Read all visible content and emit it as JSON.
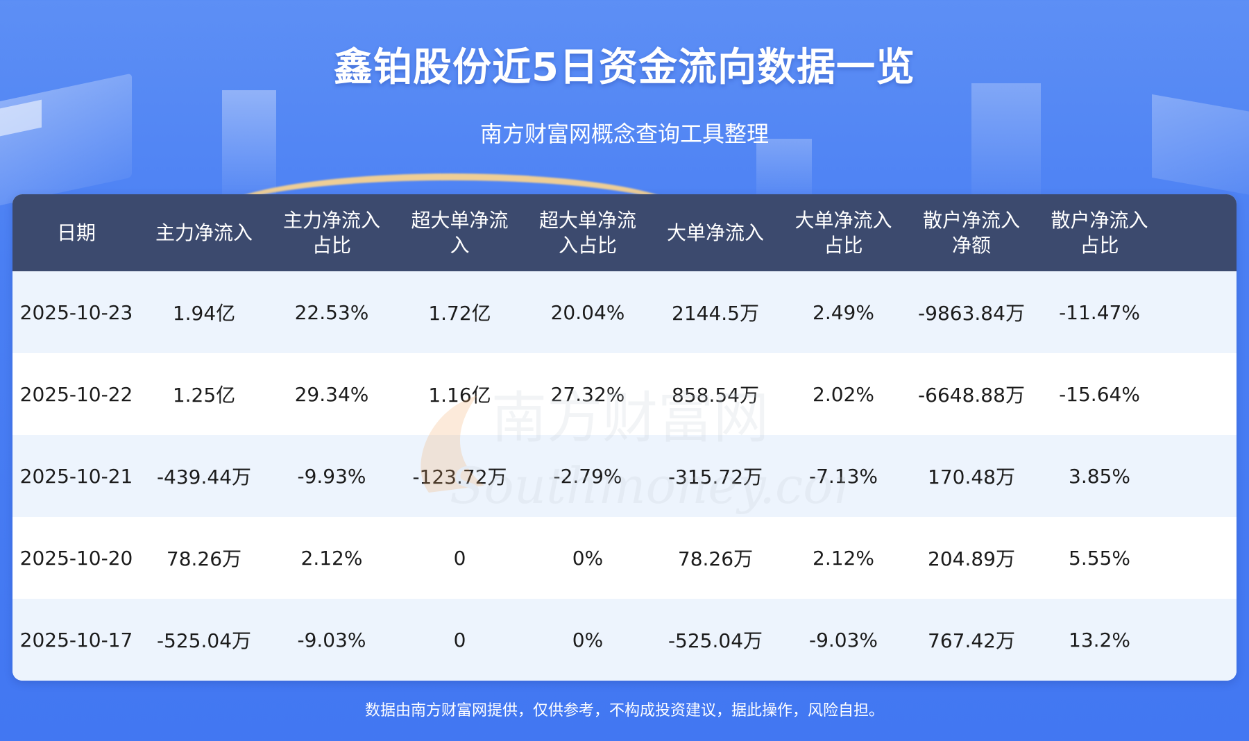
{
  "header": {
    "title": "鑫铂股份近5日资金流向数据一览",
    "subtitle": "南方财富网概念查询工具整理"
  },
  "table": {
    "columns": [
      "日期",
      "主力净流入",
      "主力净流入\n占比",
      "超大单净流\n入",
      "超大单净流\n入占比",
      "大单净流入",
      "大单净流入\n占比",
      "散户净流入\n净额",
      "散户净流入\n占比"
    ],
    "rows": [
      [
        "2025-10-23",
        "1.94亿",
        "22.53%",
        "1.72亿",
        "20.04%",
        "2144.5万",
        "2.49%",
        "-9863.84万",
        "-11.47%"
      ],
      [
        "2025-10-22",
        "1.25亿",
        "29.34%",
        "1.16亿",
        "27.32%",
        "858.54万",
        "2.02%",
        "-6648.88万",
        "-15.64%"
      ],
      [
        "2025-10-21",
        "-439.44万",
        "-9.93%",
        "-123.72万",
        "-2.79%",
        "-315.72万",
        "-7.13%",
        "170.48万",
        "3.85%"
      ],
      [
        "2025-10-20",
        "78.26万",
        "2.12%",
        "0",
        "0%",
        "78.26万",
        "2.12%",
        "204.89万",
        "5.55%"
      ],
      [
        "2025-10-17",
        "-525.04万",
        "-9.03%",
        "0",
        "0%",
        "-525.04万",
        "-9.03%",
        "767.42万",
        "13.2%"
      ]
    ]
  },
  "watermark": {
    "text_cn": "南方财富网",
    "text_en": "Southmoney.com"
  },
  "footer": {
    "disclaimer": "数据由南方财富网提供，仅供参考，不构成投资建议，据此操作，风险自担。"
  },
  "colors": {
    "background": "#4a7ff3",
    "header_row": "#3c4a6e",
    "alt_row": "#edf4fd",
    "text": "#1b1b1b"
  }
}
